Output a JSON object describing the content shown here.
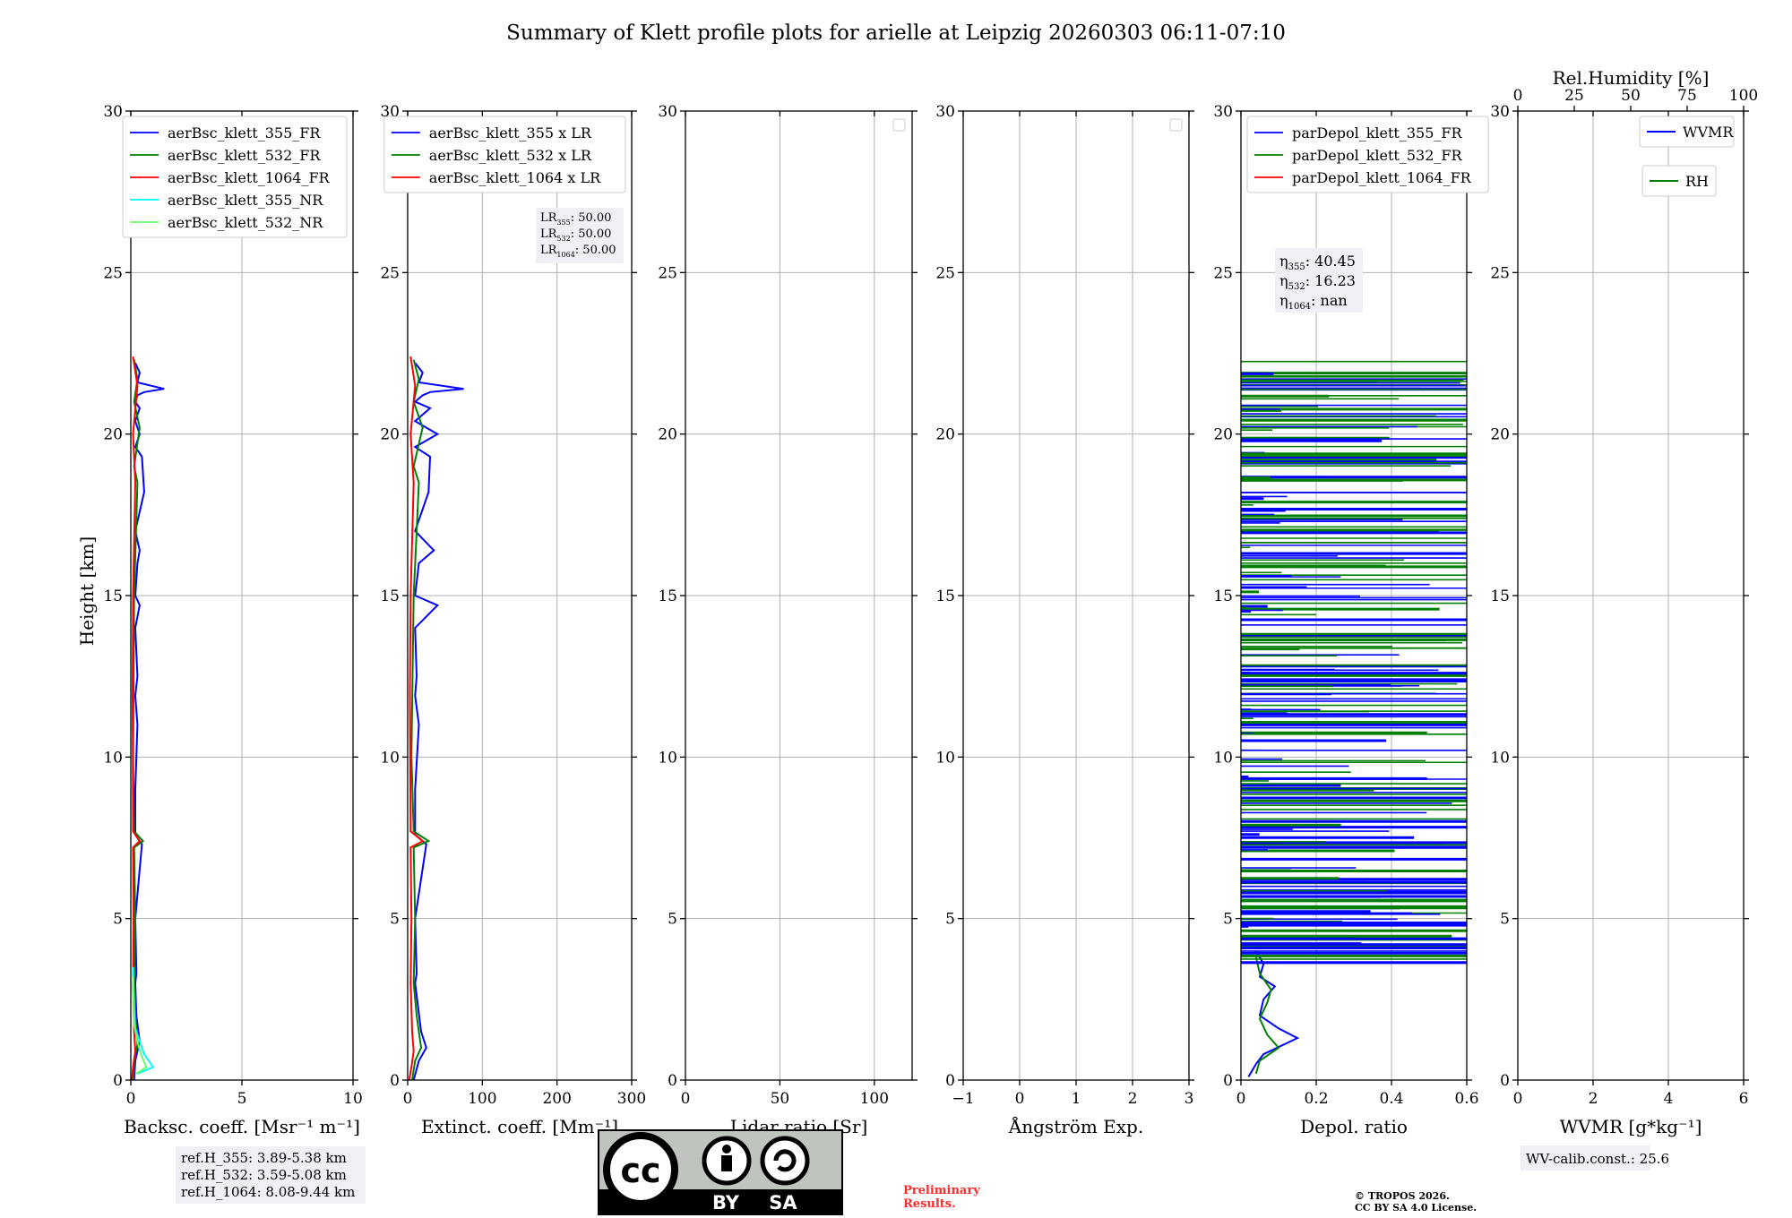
{
  "title": "Summary of Klett profile plots for arielle at Leipzig 20260303 06:11-07:10",
  "ylabel": "Height [km]",
  "chart_data": [
    {
      "type": "line",
      "id": "bsc",
      "xlabel": "Backsc. coeff. [Msr⁻¹ m⁻¹]",
      "xlim": [
        0,
        10
      ],
      "ylim": [
        0,
        30
      ],
      "xticks": [
        0,
        5,
        10
      ],
      "yticks": [
        0,
        5,
        10,
        15,
        20,
        25,
        30
      ],
      "legend": "top-right",
      "series": [
        {
          "name": "aerBsc_klett_355_FR",
          "color": "#0000ff",
          "x": [
            0.15,
            0.2,
            0.4,
            0.25,
            0.2,
            0.25,
            0.2,
            0.5,
            0.2,
            0.2,
            0.3,
            0.2,
            0.3,
            0.2,
            0.4,
            0.2,
            0.3,
            0.4,
            0.2,
            0.6,
            0.5,
            0.2,
            0.4,
            0.2,
            0.4,
            0.2,
            0.3,
            0.6,
            1.5,
            0.3,
            0.4,
            0.2
          ],
          "y": [
            0,
            0.6,
            1.2,
            2,
            3,
            3.3,
            5,
            7.3,
            7.6,
            9,
            11,
            11.9,
            12.5,
            14,
            14.7,
            15,
            16,
            16.4,
            17,
            18.2,
            19.3,
            19.6,
            20,
            20.4,
            20.8,
            21,
            21.2,
            21.3,
            21.4,
            21.6,
            21.9,
            22.2
          ]
        },
        {
          "name": "aerBsc_klett_532_FR",
          "color": "#008000",
          "x": [
            0.12,
            0.15,
            0.3,
            0.2,
            0.15,
            0.2,
            0.15,
            0.55,
            0.15,
            0.1,
            0.15,
            0.3,
            0.15,
            0.4,
            0.15,
            0.3,
            0.15
          ],
          "y": [
            0,
            0.6,
            1.1,
            2,
            3,
            5,
            7.2,
            7.4,
            7.7,
            10,
            15,
            18.5,
            19,
            20.2,
            21,
            21.7,
            22.3
          ]
        },
        {
          "name": "aerBsc_klett_1064_FR",
          "color": "#ff0000",
          "x": [
            0.05,
            0.1,
            0.2,
            0.15,
            0.1,
            0.12,
            0.1,
            0.4,
            0.1,
            0.08,
            0.1,
            0.2,
            0.1,
            0.3,
            0.1
          ],
          "y": [
            0,
            0.4,
            0.9,
            1.5,
            3,
            5,
            7.2,
            7.4,
            7.7,
            12,
            15,
            18.5,
            20,
            21.5,
            22.4
          ]
        },
        {
          "name": "aerBsc_klett_355_NR",
          "color": "#00ffff",
          "x": [
            0.3,
            1.0,
            0.6,
            0.4,
            0.2,
            0.15,
            0.1
          ],
          "y": [
            0.2,
            0.4,
            0.8,
            1.2,
            1.6,
            2.2,
            3.5
          ]
        },
        {
          "name": "aerBsc_klett_532_NR",
          "color": "#66ff66",
          "x": [
            0.25,
            0.7,
            0.45,
            0.3,
            0.15,
            0.1
          ],
          "y": [
            0.2,
            0.4,
            0.8,
            1.2,
            1.7,
            3.2
          ]
        }
      ],
      "info_box": [
        "ref.H_355: 3.89-5.38 km",
        "ref.H_532: 3.59-5.08 km",
        "ref.H_1064: 8.08-9.44 km"
      ]
    },
    {
      "type": "line",
      "id": "ext",
      "xlabel": "Extinct. coeff. [Mm⁻¹]",
      "xlim": [
        0,
        300
      ],
      "ylim": [
        0,
        30
      ],
      "xticks": [
        0,
        100,
        200,
        300
      ],
      "yticks": [
        0,
        5,
        10,
        15,
        20,
        25,
        30
      ],
      "legend": "top-right",
      "series": [
        {
          "name": "aerBsc_klett_355 x LR",
          "color": "#0000ff",
          "x": [
            8,
            15,
            25,
            18,
            10,
            12,
            10,
            25,
            10,
            10,
            15,
            10,
            12,
            10,
            40,
            10,
            15,
            35,
            10,
            28,
            30,
            10,
            40,
            10,
            30,
            10,
            20,
            30,
            75,
            15,
            20,
            10
          ],
          "y": [
            0,
            0.6,
            1.0,
            1.5,
            3,
            3.3,
            5,
            7.3,
            7.6,
            9,
            11,
            11.9,
            12.5,
            14,
            14.7,
            15,
            16,
            16.4,
            17,
            18.2,
            19.3,
            19.6,
            20,
            20.4,
            20.8,
            21,
            21.2,
            21.3,
            21.4,
            21.6,
            21.9,
            22.2
          ]
        },
        {
          "name": "aerBsc_klett_532 x LR",
          "color": "#008000",
          "x": [
            6,
            10,
            18,
            12,
            8,
            10,
            8,
            28,
            8,
            5,
            8,
            15,
            8,
            20,
            8,
            15,
            8
          ],
          "y": [
            0,
            0.6,
            1.0,
            2,
            3,
            5,
            7.2,
            7.4,
            7.7,
            10,
            15,
            18.5,
            19,
            20.2,
            21,
            21.7,
            22.3
          ]
        },
        {
          "name": "aerBsc_klett_1064 x LR",
          "color": "#ff0000",
          "x": [
            2,
            5,
            8,
            6,
            4,
            5,
            4,
            20,
            4,
            3,
            4,
            8,
            4,
            10,
            4
          ],
          "y": [
            0,
            0.4,
            0.9,
            1.5,
            3,
            5,
            7.2,
            7.4,
            7.7,
            12,
            15,
            18.5,
            20,
            21.5,
            22.4
          ]
        }
      ],
      "info_box": [
        "LR355: 50.00",
        "LR532: 50.00",
        "LR1064: 50.00"
      ]
    },
    {
      "type": "line",
      "id": "lr",
      "xlabel": "Lidar ratio [Sr]",
      "xlim": [
        0,
        120
      ],
      "ylim": [
        0,
        30
      ],
      "xticks": [
        0,
        50,
        100
      ],
      "yticks": [
        0,
        5,
        10,
        15,
        20,
        25,
        30
      ],
      "legend": "top-right",
      "series": []
    },
    {
      "type": "line",
      "id": "ae",
      "xlabel": "Ångström Exp.",
      "xlim": [
        -1,
        3
      ],
      "ylim": [
        0,
        30
      ],
      "xticks": [
        -1,
        0,
        1,
        2,
        3
      ],
      "yticks": [
        0,
        5,
        10,
        15,
        20,
        25,
        30
      ],
      "legend": "top-right",
      "series": []
    },
    {
      "type": "line",
      "id": "depol",
      "xlabel": "Depol. ratio",
      "xlim": [
        0,
        0.6
      ],
      "ylim": [
        0,
        30
      ],
      "xticks": [
        0.0,
        0.2,
        0.4,
        0.6
      ],
      "yticks": [
        0,
        5,
        10,
        15,
        20,
        25,
        30
      ],
      "legend": "top-left",
      "series": [
        {
          "name": "parDepol_klett_355_FR",
          "color": "#0000ff",
          "note": "noisy, spans 0-0.6 above 3.5 km",
          "x": [
            0.02,
            0.04,
            0.06,
            0.15,
            0.1,
            0.05,
            0.06,
            0.09,
            0.05,
            0.06,
            0.04
          ],
          "y": [
            0.1,
            0.5,
            0.8,
            1.3,
            1.6,
            2.0,
            2.5,
            2.9,
            3.2,
            3.6,
            4.0
          ]
        },
        {
          "name": "parDepol_klett_532_FR",
          "color": "#008000",
          "note": "noisy, spans 0-0.6 above 3.5 km",
          "x": [
            0.04,
            0.05,
            0.1,
            0.07,
            0.05,
            0.07,
            0.08,
            0.05,
            0.04
          ],
          "y": [
            0.2,
            0.6,
            1.0,
            1.4,
            1.9,
            2.4,
            2.8,
            3.3,
            3.8
          ]
        },
        {
          "name": "parDepol_klett_1064_FR",
          "color": "#ff0000",
          "x": [],
          "y": []
        }
      ],
      "info_box": [
        "η355: 40.45",
        "η532: 16.23",
        "η1064: nan"
      ]
    },
    {
      "type": "line",
      "id": "wv",
      "xlabel": "WVMR [g*kg⁻¹]",
      "top_xlabel": "Rel.Humidity [%]",
      "xlim": [
        0,
        6
      ],
      "ylim": [
        0,
        30
      ],
      "xticks": [
        0,
        2,
        4,
        6
      ],
      "top_xticks": [
        0,
        25,
        50,
        75,
        100
      ],
      "yticks": [
        0,
        5,
        10,
        15,
        20,
        25,
        30
      ],
      "legend": "top-right",
      "series": [
        {
          "name": "WVMR",
          "color": "#0000ff",
          "x": [],
          "y": []
        },
        {
          "name": "RH",
          "color": "#008000",
          "x": [],
          "y": []
        }
      ],
      "info_box": [
        "WV-calib.const.: 25.6"
      ]
    }
  ],
  "badge": {
    "cc": "cc",
    "by": "BY",
    "sa": "SA"
  },
  "preliminary": [
    "Preliminary",
    "Results."
  ],
  "copyright": [
    "© TROPOS 2026.",
    "CC BY SA 4.0 License."
  ]
}
